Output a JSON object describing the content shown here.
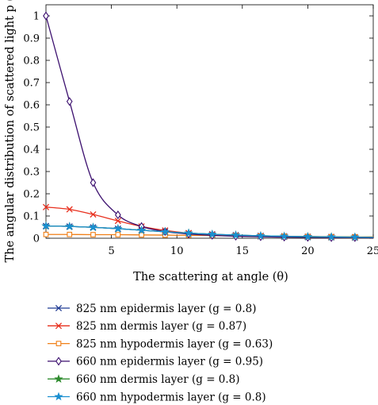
{
  "chart_data": {
    "type": "line",
    "xlabel": "The scattering at angle (θ)",
    "ylabel": "The angular distribution of scattered light p (θ)",
    "xlim": [
      0,
      25
    ],
    "ylim": [
      0,
      1.05
    ],
    "xticks": [
      5,
      10,
      15,
      20,
      25
    ],
    "yticks": [
      0,
      0.1,
      0.2,
      0.3,
      0.4,
      0.5,
      0.6,
      0.7,
      0.8,
      0.9,
      1
    ],
    "ytick_labels": [
      "0",
      "0.1",
      "0.2",
      "0.3",
      "0.4",
      "0.5",
      "0.6",
      "0.7",
      "0.8",
      "0.9",
      "1"
    ],
    "grid": false,
    "legend_position": "below",
    "marker_x": [
      0,
      1.8,
      3.6,
      5.5,
      7.3,
      9.1,
      10.9,
      12.7,
      14.5,
      16.4,
      18.2,
      20,
      21.8,
      23.6
    ],
    "series": [
      {
        "name": "825 nm epidermis layer (g = 0.8)",
        "color": "#1f3a93",
        "marker": "x",
        "x": [
          0,
          1.8,
          3.6,
          5.5,
          7.3,
          9.1,
          10.9,
          12.7,
          14.5,
          16.4,
          18.2,
          20,
          21.8,
          23.6,
          25
        ],
        "values": [
          0.055,
          0.053,
          0.049,
          0.043,
          0.036,
          0.029,
          0.023,
          0.018,
          0.014,
          0.011,
          0.009,
          0.007,
          0.006,
          0.005,
          0.004
        ]
      },
      {
        "name": "825 nm dermis layer (g = 0.87)",
        "color": "#e8301e",
        "marker": "x",
        "x": [
          0,
          1.8,
          3.6,
          5.5,
          7.3,
          9.1,
          10.9,
          12.7,
          14.5,
          16.4,
          18.2,
          20,
          21.8,
          23.6,
          25
        ],
        "values": [
          0.14,
          0.13,
          0.107,
          0.078,
          0.053,
          0.035,
          0.023,
          0.016,
          0.011,
          0.008,
          0.006,
          0.005,
          0.004,
          0.003,
          0.003
        ]
      },
      {
        "name": "825 nm hypodermis layer (g = 0.63)",
        "color": "#f07f17",
        "marker": "square",
        "x": [
          0,
          1.8,
          3.6,
          5.5,
          7.3,
          9.1,
          10.9,
          12.7,
          14.5,
          16.4,
          18.2,
          20,
          21.8,
          23.6,
          25
        ],
        "values": [
          0.017,
          0.017,
          0.016,
          0.016,
          0.015,
          0.014,
          0.013,
          0.012,
          0.011,
          0.01,
          0.009,
          0.008,
          0.007,
          0.006,
          0.006
        ]
      },
      {
        "name": "660 nm epidermis layer (g = 0.95)",
        "color": "#3b0f6e",
        "marker": "diamond",
        "x": [
          0,
          1.8,
          3.6,
          5.5,
          7.3,
          9.1,
          10.9,
          12.7,
          14.5,
          16.4,
          18.2,
          20,
          21.8,
          23.6,
          25
        ],
        "values": [
          1.0,
          0.615,
          0.25,
          0.105,
          0.053,
          0.03,
          0.019,
          0.013,
          0.009,
          0.007,
          0.005,
          0.004,
          0.003,
          0.003,
          0.002
        ]
      },
      {
        "name": "660 nm dermis layer (g = 0.8)",
        "color": "#2e8b2e",
        "marker": "star",
        "x": [
          0,
          1.8,
          3.6,
          5.5,
          7.3,
          9.1,
          10.9,
          12.7,
          14.5,
          16.4,
          18.2,
          20,
          21.8,
          23.6,
          25
        ],
        "values": [
          0.055,
          0.053,
          0.049,
          0.043,
          0.036,
          0.029,
          0.023,
          0.018,
          0.014,
          0.011,
          0.009,
          0.007,
          0.006,
          0.005,
          0.004
        ]
      },
      {
        "name": "660 nm hypodermis layer (g = 0.8)",
        "color": "#1b8fd0",
        "marker": "star",
        "x": [
          0,
          1.8,
          3.6,
          5.5,
          7.3,
          9.1,
          10.9,
          12.7,
          14.5,
          16.4,
          18.2,
          20,
          21.8,
          23.6,
          25
        ],
        "values": [
          0.055,
          0.053,
          0.049,
          0.043,
          0.036,
          0.029,
          0.023,
          0.018,
          0.014,
          0.011,
          0.009,
          0.007,
          0.006,
          0.005,
          0.004
        ]
      }
    ]
  }
}
